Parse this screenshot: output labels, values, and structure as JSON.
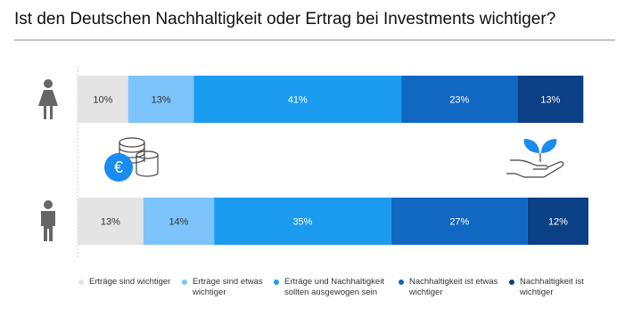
{
  "chart_data": {
    "type": "stacked-bar-horizontal",
    "title": "Ist den Deutschen Nachhaltigkeit oder Ertrag bei Investments wichtiger?",
    "categories": [
      null,
      null
    ],
    "series": [
      {
        "name": "Erträge sind wichtiger",
        "color": "#e4e4e4",
        "values": [
          10,
          13
        ],
        "value_labels": [
          "10%",
          "13%"
        ]
      },
      {
        "name": "Erträge sind etwas wichtiger",
        "color": "#7cc4fa",
        "values": [
          13,
          14
        ],
        "value_labels": [
          "13%",
          "14%"
        ]
      },
      {
        "name": "Erträge und Nachhaltigkeit sollten ausgewogen sein",
        "color": "#1b9bf0",
        "values": [
          41,
          35
        ],
        "value_labels": [
          "41%",
          "35%"
        ]
      },
      {
        "name": "Nachhaltigkeit ist etwas wichtiger",
        "color": "#1068c2",
        "values": [
          23,
          27
        ],
        "value_labels": [
          "23%",
          "27%"
        ]
      },
      {
        "name": "Nachhaltigkeit ist wichtiger",
        "color": "#0b3f86",
        "values": [
          13,
          12
        ],
        "value_labels": [
          "13%",
          "12%"
        ]
      }
    ]
  }
}
